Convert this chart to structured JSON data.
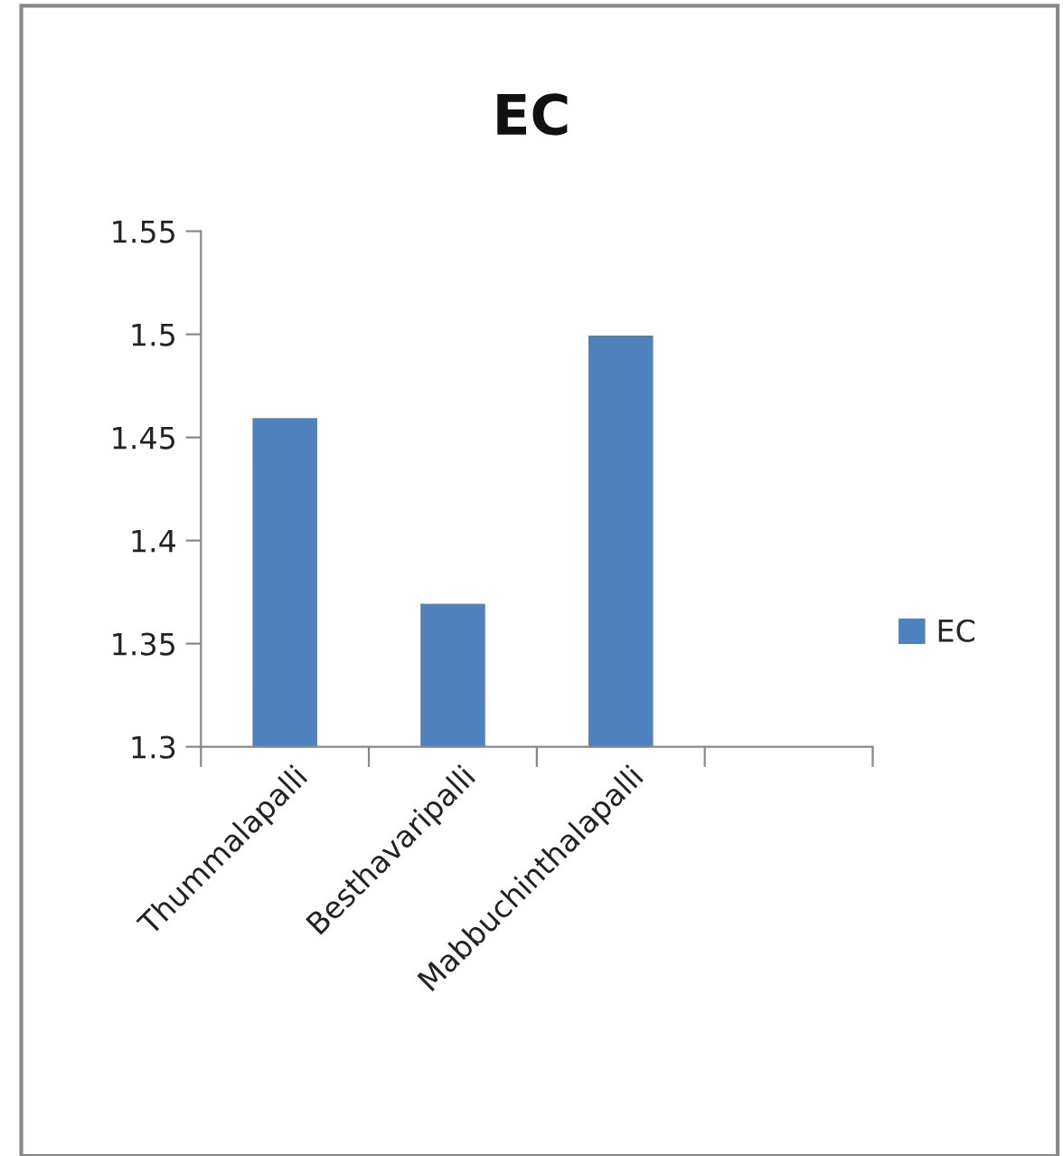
{
  "chart_data": {
    "type": "bar",
    "title": "EC",
    "categories": [
      "Thummalapalli",
      "Besthavaripalli",
      "Mabbuchinthalapalli",
      null
    ],
    "series": [
      {
        "name": "EC",
        "color": "#4f81bd",
        "values": [
          1.46,
          1.37,
          1.5,
          null
        ]
      }
    ],
    "ylim": [
      1.3,
      1.55
    ],
    "yticks": [
      1.3,
      1.35,
      1.4,
      1.45,
      1.5,
      1.55
    ],
    "grid": false,
    "legend": "right"
  }
}
